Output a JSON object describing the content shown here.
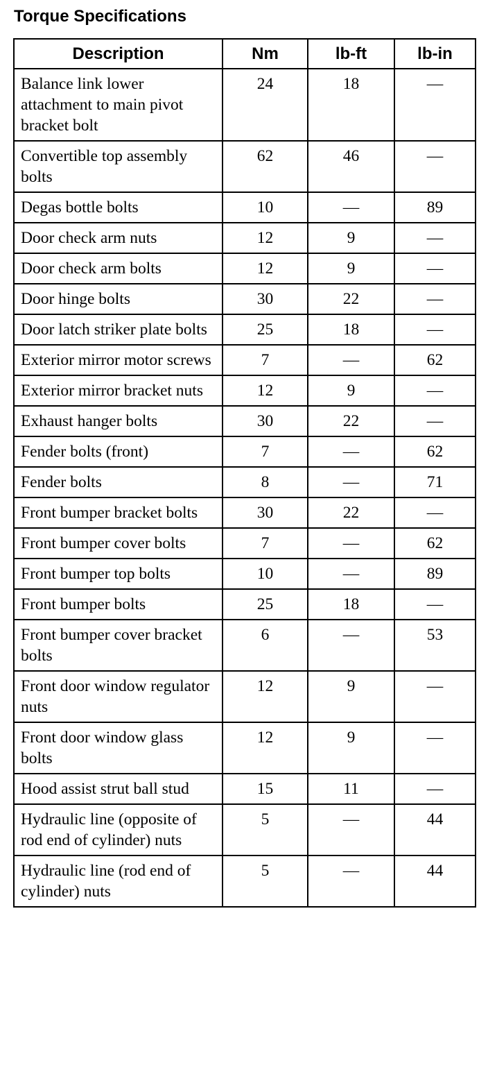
{
  "title": "Torque Specifications",
  "table": {
    "headers": [
      "Description",
      "Nm",
      "lb-ft",
      "lb-in"
    ],
    "rows": [
      [
        "Balance link lower attachment to main pivot bracket bolt",
        "24",
        "18",
        "—"
      ],
      [
        "Convertible top assembly bolts",
        "62",
        "46",
        "—"
      ],
      [
        "Degas bottle bolts",
        "10",
        "—",
        "89"
      ],
      [
        "Door check arm nuts",
        "12",
        "9",
        "—"
      ],
      [
        "Door check arm bolts",
        "12",
        "9",
        "—"
      ],
      [
        "Door hinge bolts",
        "30",
        "22",
        "—"
      ],
      [
        "Door latch striker plate bolts",
        "25",
        "18",
        "—"
      ],
      [
        "Exterior mirror motor screws",
        "7",
        "—",
        "62"
      ],
      [
        "Exterior mirror bracket nuts",
        "12",
        "9",
        "—"
      ],
      [
        "Exhaust hanger bolts",
        "30",
        "22",
        "—"
      ],
      [
        "Fender bolts (front)",
        "7",
        "—",
        "62"
      ],
      [
        "Fender bolts",
        "8",
        "—",
        "71"
      ],
      [
        "Front bumper bracket bolts",
        "30",
        "22",
        "—"
      ],
      [
        "Front bumper cover bolts",
        "7",
        "—",
        "62"
      ],
      [
        "Front bumper top bolts",
        "10",
        "—",
        "89"
      ],
      [
        "Front bumper bolts",
        "25",
        "18",
        "—"
      ],
      [
        "Front bumper cover bracket bolts",
        "6",
        "—",
        "53"
      ],
      [
        "Front door window regulator nuts",
        "12",
        "9",
        "—"
      ],
      [
        "Front door window glass bolts",
        "12",
        "9",
        "—"
      ],
      [
        "Hood assist strut ball stud",
        "15",
        "11",
        "—"
      ],
      [
        "Hydraulic line (opposite of rod end of cylinder) nuts",
        "5",
        "—",
        "44"
      ],
      [
        "Hydraulic line (rod end of cylinder) nuts",
        "5",
        "—",
        "44"
      ]
    ]
  }
}
